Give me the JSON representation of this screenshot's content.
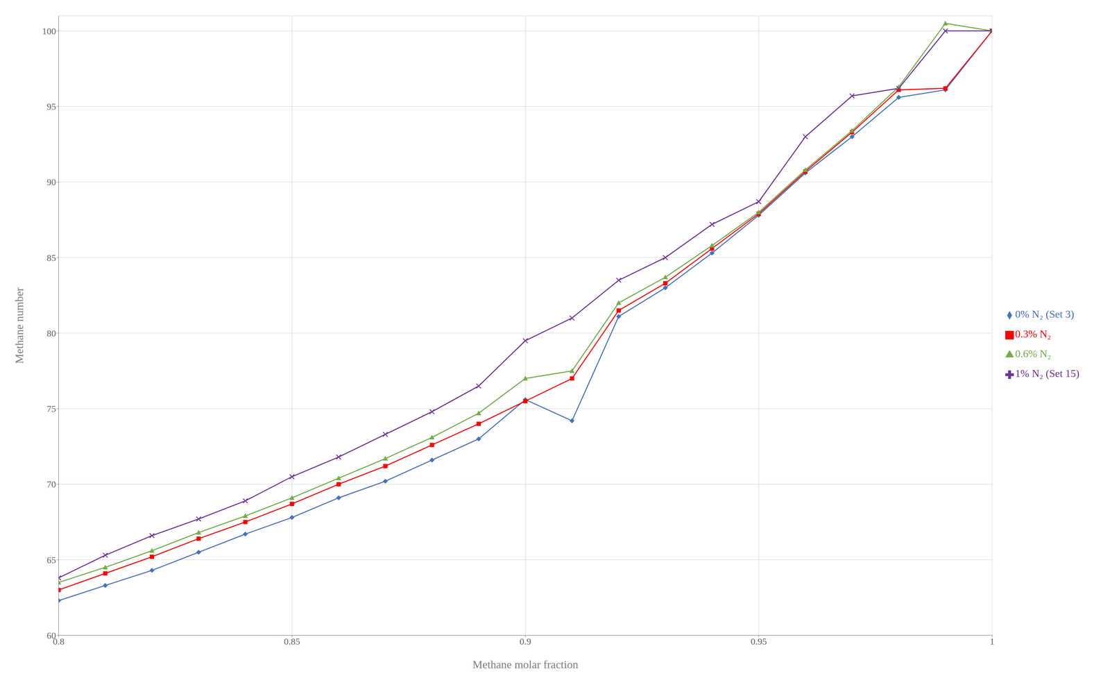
{
  "chart_data": {
    "type": "line",
    "xlabel": "Methane molar fraction",
    "ylabel": "Methane number",
    "x": [
      0.8,
      0.81,
      0.82,
      0.83,
      0.84,
      0.85,
      0.86,
      0.87,
      0.88,
      0.89,
      0.9,
      0.91,
      0.92,
      0.93,
      0.94,
      0.95,
      0.96,
      0.97,
      0.98,
      0.99,
      1.0
    ],
    "series": [
      {
        "name": "0% N₂ (Set 3)",
        "color": "#4472C4",
        "marker": "diamond",
        "values": [
          62.3,
          63.3,
          64.3,
          65.5,
          66.7,
          67.8,
          69.1,
          70.2,
          71.6,
          73.0,
          75.6,
          74.2,
          81.1,
          83.0,
          85.3,
          87.8,
          90.6,
          93.0,
          95.6,
          96.1,
          100.0
        ]
      },
      {
        "name": "0.3% N₂",
        "color": "#FF0000",
        "marker": "square",
        "values": [
          63.0,
          64.1,
          65.2,
          66.4,
          67.5,
          68.7,
          70.0,
          71.2,
          72.6,
          74.0,
          75.5,
          77.0,
          81.5,
          83.3,
          85.6,
          87.9,
          90.7,
          93.3,
          96.1,
          96.2,
          100.0
        ]
      },
      {
        "name": "0.6% N₂",
        "color": "#70AD47",
        "marker": "triangle",
        "values": [
          63.5,
          64.5,
          65.6,
          66.8,
          67.9,
          69.1,
          70.4,
          71.7,
          73.1,
          74.7,
          77.0,
          77.5,
          82.0,
          83.7,
          85.8,
          88.0,
          90.8,
          93.4,
          96.3,
          100.5,
          100.0
        ]
      },
      {
        "name": "1% N₂ (Set 15)",
        "color": "#7030A0",
        "marker": "x",
        "values": [
          63.8,
          65.3,
          66.6,
          67.7,
          68.9,
          70.5,
          71.8,
          73.3,
          74.8,
          76.5,
          79.5,
          81.0,
          83.5,
          85.0,
          87.2,
          88.7,
          93.0,
          95.7,
          96.2,
          100.0,
          100.0
        ]
      }
    ],
    "xlim": [
      0.8,
      1.0
    ],
    "ylim": [
      60,
      101
    ],
    "xticks": [
      0.8,
      0.85,
      0.9,
      0.95,
      1.0
    ],
    "yticks": [
      60,
      65,
      70,
      75,
      80,
      85,
      90,
      95,
      100
    ],
    "grid": true,
    "legend": "right"
  }
}
